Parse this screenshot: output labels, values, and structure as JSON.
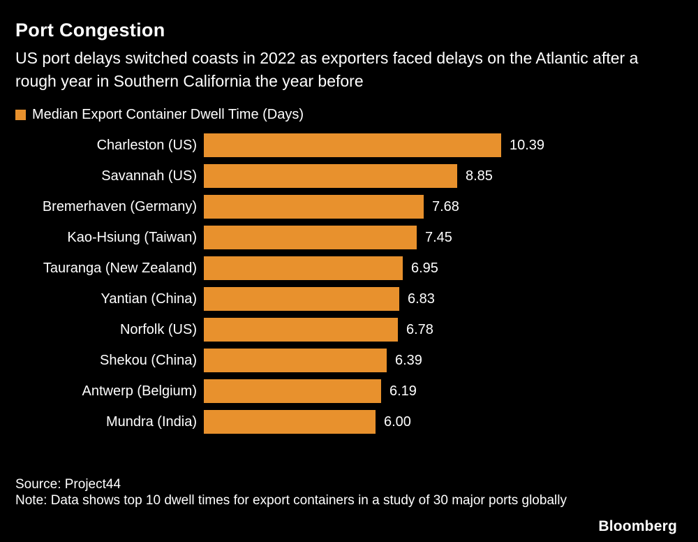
{
  "title": "Port Congestion",
  "subtitle": "US port delays switched coasts in 2022 as exporters faced delays on the Atlantic after a rough year in Southern California the year before",
  "legend": {
    "label": "Median Export Container Dwell Time (Days)",
    "color": "#E8912D"
  },
  "footer": {
    "source": "Source: Project44",
    "note": "Note: Data shows top 10 dwell times for export containers in a study of 30 major ports globally"
  },
  "brand": "Bloomberg",
  "colors": {
    "background": "#000000",
    "text": "#FFFFFF",
    "bar": "#E8912D"
  },
  "chart_data": {
    "type": "bar",
    "orientation": "horizontal",
    "title": "Median Export Container Dwell Time (Days)",
    "categories": [
      "Charleston (US)",
      "Savannah (US)",
      "Bremerhaven (Germany)",
      "Kao-Hsiung (Taiwan)",
      "Tauranga (New Zealand)",
      "Yantian (China)",
      "Norfolk (US)",
      "Shekou (China)",
      "Antwerp (Belgium)",
      "Mundra (India)"
    ],
    "values": [
      10.39,
      8.85,
      7.68,
      7.45,
      6.95,
      6.83,
      6.78,
      6.39,
      6.19,
      6.0
    ],
    "value_labels": [
      "10.39",
      "8.85",
      "7.68",
      "7.45",
      "6.95",
      "6.83",
      "6.78",
      "6.39",
      "6.19",
      "6.00"
    ],
    "xlabel": "",
    "ylabel": "",
    "xlim": [
      0,
      10.39
    ],
    "grid": false,
    "legend_position": "top",
    "bar_color": "#E8912D"
  }
}
